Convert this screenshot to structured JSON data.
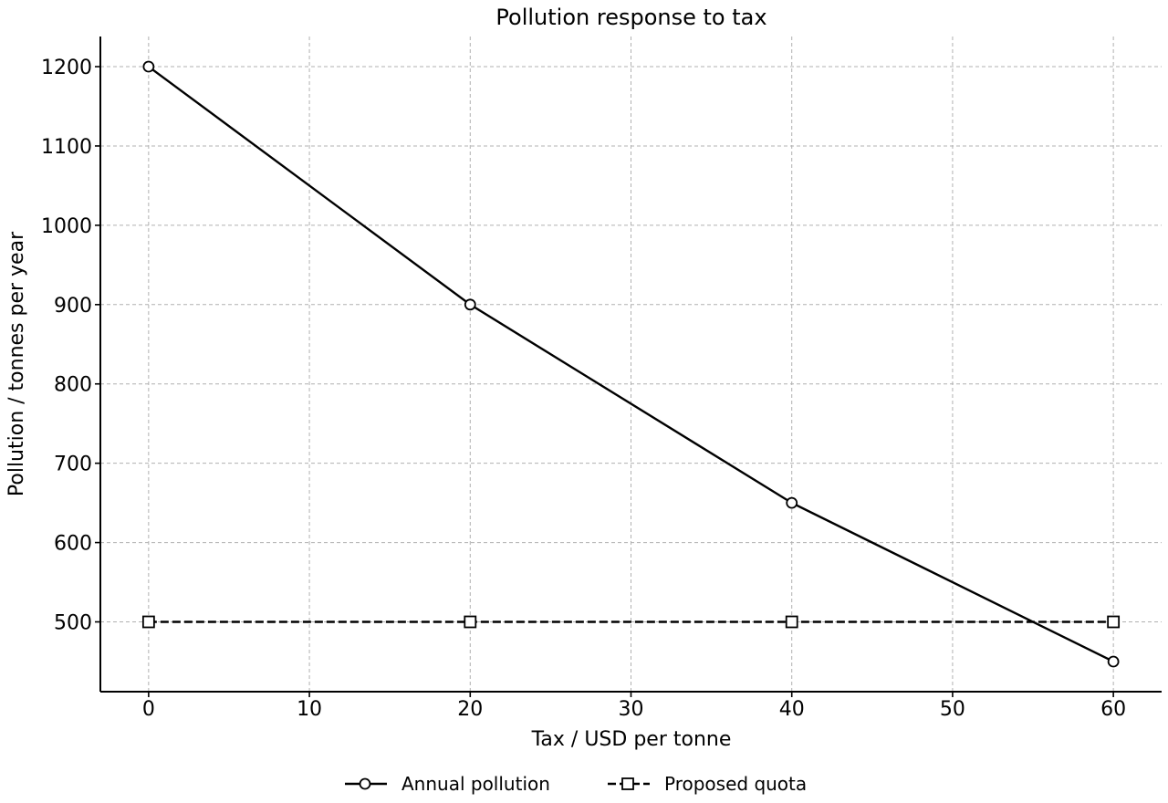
{
  "chart_data": {
    "type": "line",
    "title": "Pollution response to tax",
    "xlabel": "Tax / USD per tonne",
    "ylabel": "Pollution / tonnes per year",
    "x": [
      0,
      20,
      40,
      60
    ],
    "series": [
      {
        "name": "Annual pollution",
        "values": [
          1200,
          900,
          650,
          450
        ],
        "color": "#000000",
        "line_style": "solid",
        "marker": "circle"
      },
      {
        "name": "Proposed quota",
        "values": [
          500,
          500,
          500,
          500
        ],
        "color": "#000000",
        "line_style": "dashed",
        "marker": "square"
      }
    ],
    "xlim": [
      -3,
      63
    ],
    "ylim": [
      412,
      1238
    ],
    "xticks": [
      0,
      10,
      20,
      30,
      40,
      50,
      60
    ],
    "yticks": [
      500,
      600,
      700,
      800,
      900,
      1000,
      1100,
      1200
    ],
    "grid": true,
    "legend_position": "bottom-center"
  }
}
